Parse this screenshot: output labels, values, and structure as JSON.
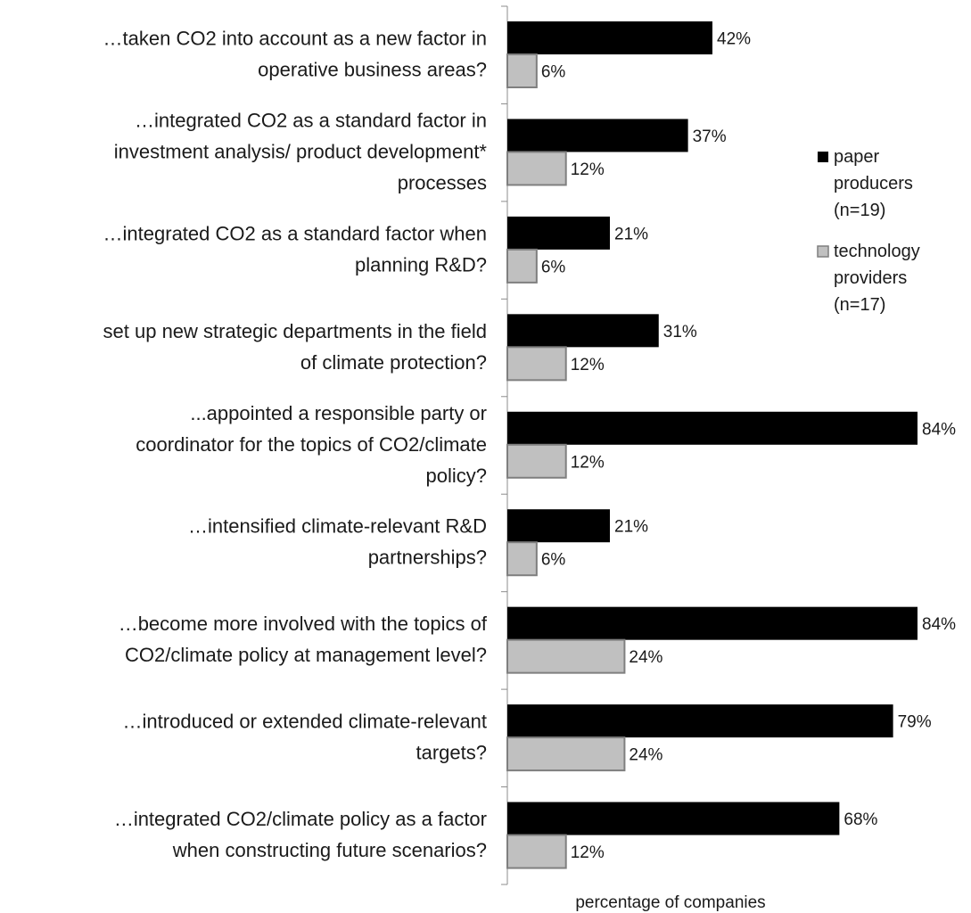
{
  "chart_data": {
    "type": "bar",
    "orientation": "horizontal",
    "categories": [
      "…taken CO2 into account as a new factor in operative business areas?",
      "…integrated CO2 as a standard factor in investment analysis/ product development* processes",
      "…integrated CO2 as a standard factor when planning R&D?",
      "set up new strategic departments in the field of climate protection?",
      "...appointed a responsible party or coordinator for the topics of CO2/climate policy?",
      "…intensified climate-relevant R&D partnerships?",
      "…become more involved with the topics of CO2/climate policy at management level?",
      "…introduced or extended climate-relevant targets?",
      "…integrated CO2/climate policy as a factor when constructing future scenarios?"
    ],
    "category_lines": [
      [
        "…taken CO2 into account as a new factor in",
        "operative business areas?"
      ],
      [
        "…integrated CO2 as a standard factor in",
        "investment analysis/ product development*",
        "processes"
      ],
      [
        "…integrated CO2 as a standard factor when",
        "planning R&D?"
      ],
      [
        "set up new strategic departments in the field",
        "of climate protection?"
      ],
      [
        "...appointed a responsible party or",
        "coordinator for the topics of CO2/climate",
        "policy?"
      ],
      [
        "…intensified climate-relevant R&D",
        "partnerships?"
      ],
      [
        "…become more involved with the topics of",
        "CO2/climate policy at management level?"
      ],
      [
        "…introduced or extended climate-relevant",
        "targets?"
      ],
      [
        "…integrated CO2/climate policy as a factor",
        "when constructing future scenarios?"
      ]
    ],
    "series": [
      {
        "name": "paper producers (n=19)",
        "legend_lines": [
          "paper",
          "producers",
          "(n=19)"
        ],
        "color": "#000000",
        "values": [
          42,
          37,
          21,
          31,
          84,
          21,
          84,
          79,
          68
        ],
        "labels": [
          "42%",
          "37%",
          "21%",
          "31%",
          "84%",
          "21%",
          "84%",
          "79%",
          "68%"
        ]
      },
      {
        "name": "technology providers (n=17)",
        "legend_lines": [
          "technology",
          "providers",
          "(n=17)"
        ],
        "color": "#c0c0c0",
        "stroke": "#7f7f7f",
        "values": [
          6,
          12,
          6,
          12,
          12,
          6,
          24,
          24,
          12
        ],
        "labels": [
          "6%",
          "12%",
          "6%",
          "12%",
          "12%",
          "6%",
          "24%",
          "24%",
          "12%"
        ]
      }
    ],
    "xlabel": "percentage of companies",
    "ylabel": "",
    "xlim": [
      0,
      84
    ],
    "grid": false,
    "legend_position": "right"
  }
}
